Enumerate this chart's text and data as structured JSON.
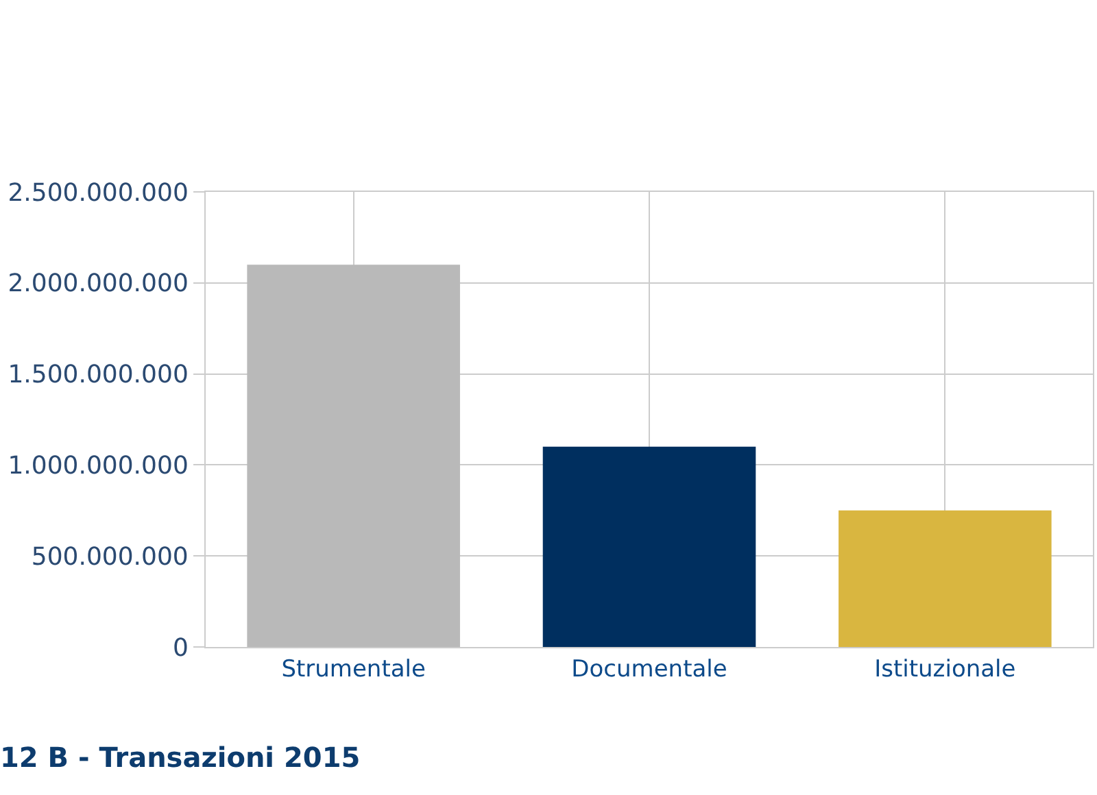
{
  "chart_data": {
    "type": "bar",
    "title": "12 B - Transazioni 2015",
    "categories": [
      "Strumentale",
      "Documentale",
      "Istituzionale"
    ],
    "values": [
      2100000000,
      1100000000,
      750000000
    ],
    "colors": [
      "#b9b9b9",
      "#002f5f",
      "#d9b640"
    ],
    "ylim": [
      0,
      2500000000
    ],
    "yticks": [
      0,
      {
        "value": 500000000,
        "label": "500.000.000"
      },
      {
        "value": 1000000000,
        "label": "1.000.000.000"
      },
      {
        "value": 1500000000,
        "label": "1.500.000.000"
      },
      {
        "value": 2000000000,
        "label": "2.000.000.000"
      },
      {
        "value": 2500000000,
        "label": "2.500.000.000"
      }
    ],
    "grid": true
  }
}
